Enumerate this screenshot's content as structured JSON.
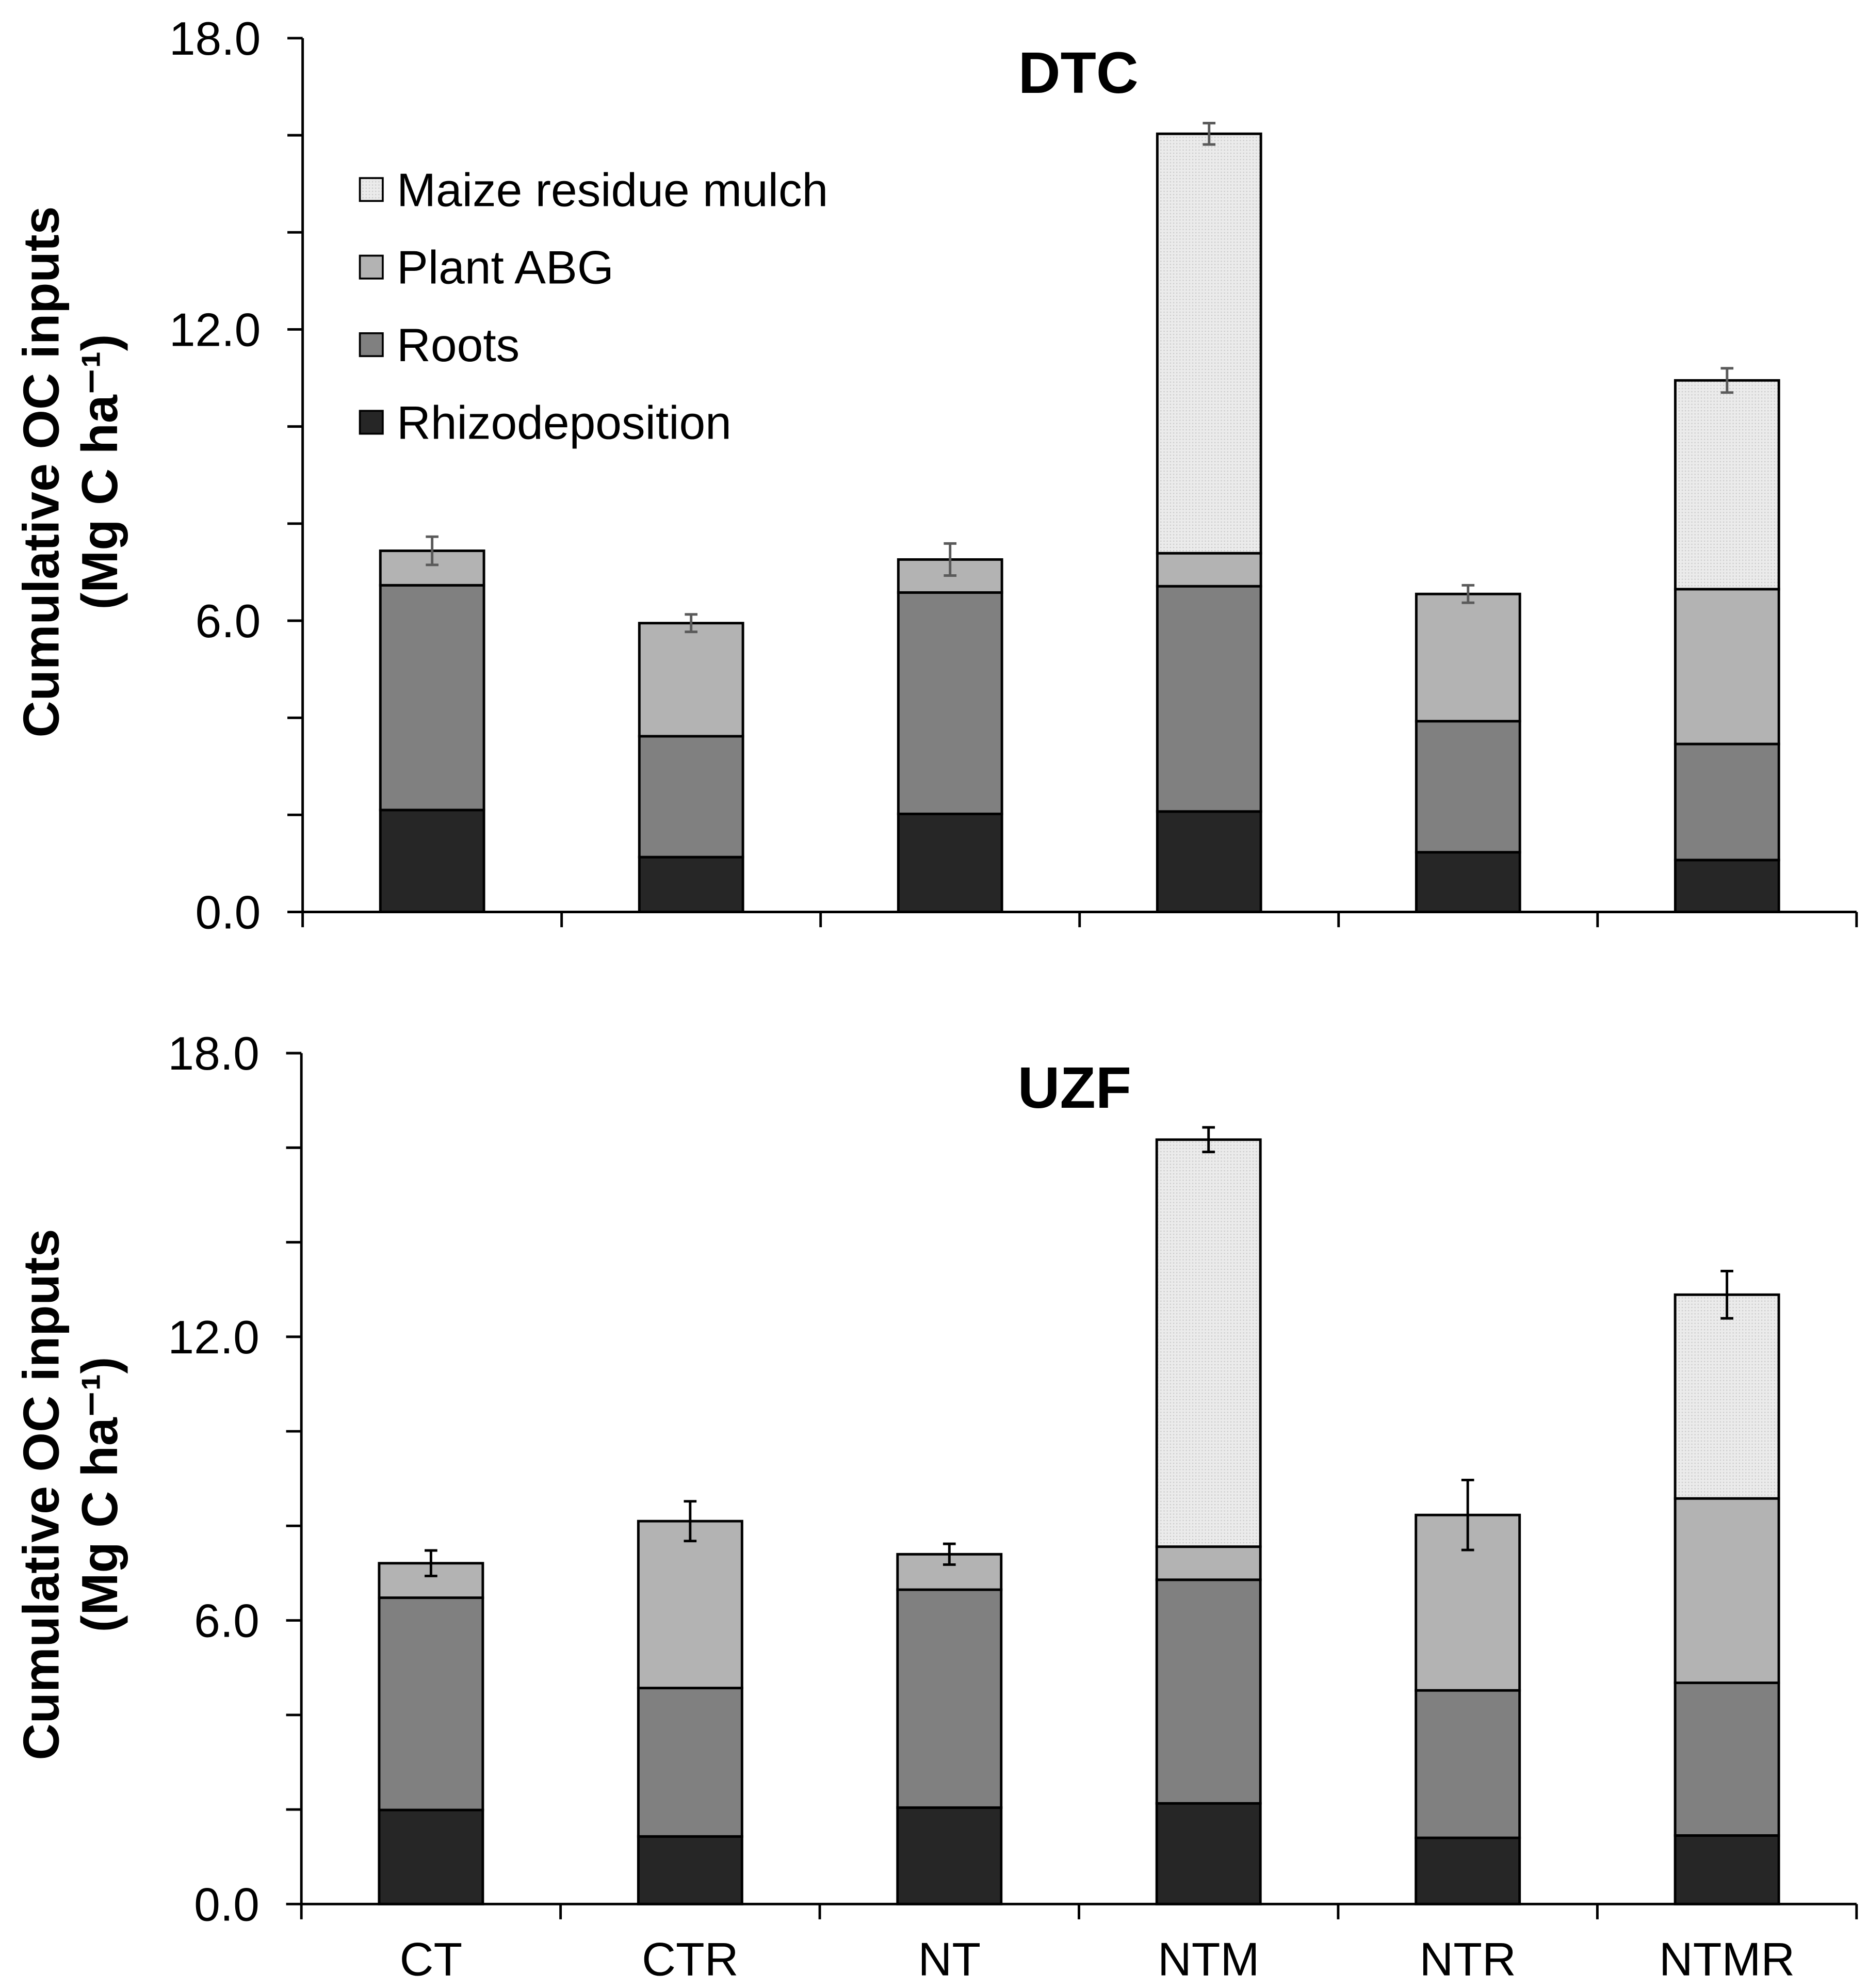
{
  "figure": {
    "background": "#ffffff",
    "axis_color": "#000000"
  },
  "chart_data": [
    {
      "type": "bar",
      "stacked": true,
      "title": "DTC",
      "categories": [
        "CT",
        "CTR",
        "NT",
        "NTM",
        "NTR",
        "NTMR"
      ],
      "series": [
        {
          "name": "Rhizodeposition",
          "color": "#262626",
          "values": [
            2.1,
            1.13,
            2.02,
            2.07,
            1.23,
            1.07
          ]
        },
        {
          "name": "Roots",
          "color": "#808080",
          "values": [
            4.63,
            2.49,
            4.56,
            4.64,
            2.7,
            2.39
          ]
        },
        {
          "name": "Plant ABG",
          "color": "#b3b3b3",
          "values": [
            0.71,
            2.33,
            0.68,
            0.68,
            2.62,
            3.19
          ]
        },
        {
          "name": "Maize residue mulch",
          "color": "#ebebeb",
          "textured": true,
          "values": [
            0,
            0,
            0,
            8.64,
            0,
            4.3
          ]
        }
      ],
      "error_bars": [
        0.29,
        0.18,
        0.33,
        0.22,
        0.18,
        0.25
      ],
      "error_bar_color": "#5a5a5a",
      "ylabel": "Cumulative OC inputs",
      "yunit": "(Mg C ha⁻¹)",
      "ylim": [
        0,
        18
      ],
      "yticks_major": [
        0,
        6,
        12,
        18
      ],
      "ytick_labels": [
        "0.0",
        "6.0",
        "12.0",
        "18.0"
      ],
      "yticks_minor_step": 2,
      "show_xtick_labels": false,
      "grid": false,
      "legend": {
        "position": "top-left",
        "order": [
          3,
          2,
          1,
          0
        ]
      }
    },
    {
      "type": "bar",
      "stacked": true,
      "title": "UZF",
      "categories": [
        "CT",
        "CTR",
        "NT",
        "NTM",
        "NTR",
        "NTMR"
      ],
      "series": [
        {
          "name": "Rhizodeposition",
          "color": "#262626",
          "values": [
            1.99,
            1.43,
            2.04,
            2.13,
            1.4,
            1.45
          ]
        },
        {
          "name": "Roots",
          "color": "#808080",
          "values": [
            4.49,
            3.14,
            4.61,
            4.73,
            3.12,
            3.23
          ]
        },
        {
          "name": "Plant ABG",
          "color": "#b3b3b3",
          "values": [
            0.73,
            3.53,
            0.75,
            0.7,
            3.71,
            3.9
          ]
        },
        {
          "name": "Maize residue mulch",
          "color": "#ebebeb",
          "textured": true,
          "values": [
            0,
            0,
            0,
            8.61,
            0,
            4.31
          ]
        }
      ],
      "error_bars": [
        0.27,
        0.42,
        0.22,
        0.26,
        0.74,
        0.5
      ],
      "error_bar_color": "#000000",
      "ylabel": "Cumulative OC inputs",
      "yunit": "(Mg C ha⁻¹)",
      "ylim": [
        0,
        18
      ],
      "yticks_major": [
        0,
        6,
        12,
        18
      ],
      "ytick_labels": [
        "0.0",
        "6.0",
        "12.0",
        "18.0"
      ],
      "yticks_minor_step": 2,
      "show_xtick_labels": true,
      "grid": false
    }
  ]
}
